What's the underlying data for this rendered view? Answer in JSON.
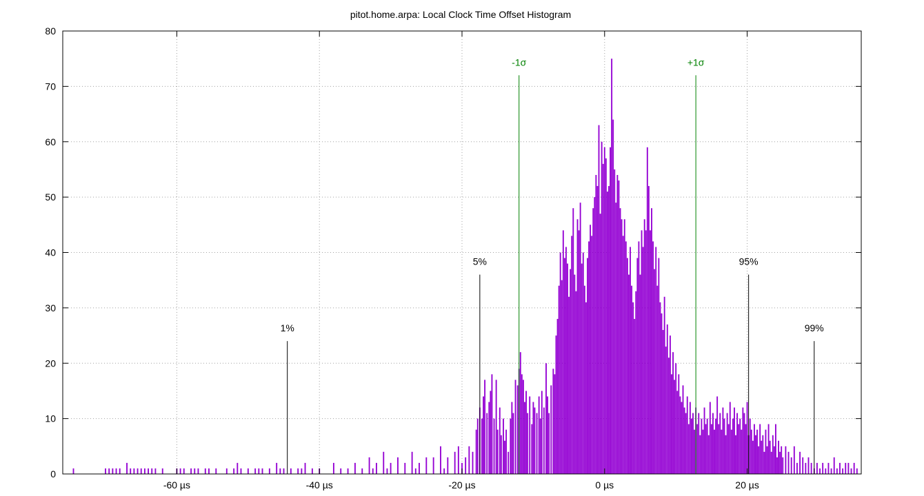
{
  "chart_data": {
    "type": "bar",
    "title": "pitot.home.arpa: Local Clock Time Offset Histogram",
    "xlabel": "",
    "ylabel": "",
    "xlim": [
      -76,
      36
    ],
    "ylim": [
      0,
      80
    ],
    "x_unit": "µs",
    "x_ticks": [
      -60,
      -40,
      -20,
      0,
      20
    ],
    "x_tick_labels": [
      "-60 µs",
      "-40 µs",
      "-20 µs",
      "0 µs",
      "20 µs"
    ],
    "y_ticks": [
      0,
      10,
      20,
      30,
      40,
      50,
      60,
      70,
      80
    ],
    "y_tick_labels": [
      "0",
      "10",
      "20",
      "30",
      "40",
      "50",
      "60",
      "70",
      "80"
    ],
    "grid": true,
    "legend": "none",
    "bin_width_us": 0.1,
    "bar_color": "#9400d3",
    "series": [
      {
        "values_note_points": [
          [
            -74.5,
            1
          ],
          [
            -70,
            1
          ],
          [
            -69.5,
            1
          ],
          [
            -69,
            1
          ],
          [
            -68.5,
            1
          ],
          [
            -68,
            1
          ],
          [
            -67,
            2
          ],
          [
            -66.5,
            1
          ],
          [
            -66,
            1
          ],
          [
            -65.5,
            1
          ],
          [
            -65,
            1
          ],
          [
            -64.5,
            1
          ],
          [
            -64,
            1
          ],
          [
            -63.5,
            1
          ],
          [
            -63,
            1
          ],
          [
            -62,
            1
          ],
          [
            -60,
            1
          ],
          [
            -59.5,
            1
          ],
          [
            -59,
            1
          ],
          [
            -58,
            1
          ],
          [
            -57.5,
            1
          ],
          [
            -57,
            1
          ],
          [
            -56,
            1
          ],
          [
            -55.5,
            1
          ],
          [
            -54.5,
            1
          ],
          [
            -53,
            1
          ],
          [
            -52,
            1
          ],
          [
            -51.5,
            2
          ],
          [
            -51,
            1
          ],
          [
            -50,
            1
          ],
          [
            -49,
            1
          ],
          [
            -48.5,
            1
          ],
          [
            -48,
            1
          ],
          [
            -47,
            1
          ],
          [
            -46,
            2
          ],
          [
            -45.5,
            1
          ],
          [
            -45,
            1
          ],
          [
            -44,
            1
          ],
          [
            -43,
            1
          ],
          [
            -42.5,
            1
          ],
          [
            -42,
            2
          ],
          [
            -41,
            1
          ],
          [
            -40,
            1
          ],
          [
            -38,
            2
          ],
          [
            -37,
            1
          ],
          [
            -36,
            1
          ],
          [
            -35,
            2
          ],
          [
            -34,
            1
          ],
          [
            -33,
            3
          ],
          [
            -32.5,
            1
          ],
          [
            -32,
            2
          ],
          [
            -31,
            4
          ],
          [
            -30.5,
            1
          ],
          [
            -30,
            2
          ],
          [
            -29,
            3
          ],
          [
            -28,
            2
          ],
          [
            -27,
            4
          ],
          [
            -26.5,
            1
          ],
          [
            -26,
            2
          ],
          [
            -25,
            3
          ],
          [
            -24,
            3
          ],
          [
            -23,
            5
          ],
          [
            -22.5,
            1
          ],
          [
            -22,
            3
          ],
          [
            -21,
            4
          ],
          [
            -20.5,
            5
          ],
          [
            -20,
            2
          ],
          [
            -19.5,
            3
          ],
          [
            -19,
            5
          ],
          [
            -18.5,
            4
          ],
          [
            -18,
            8
          ],
          [
            -17.8,
            10
          ],
          [
            -17.5,
            12
          ],
          [
            -17.2,
            10
          ],
          [
            -17,
            14
          ],
          [
            -16.8,
            17
          ],
          [
            -16.5,
            11
          ],
          [
            -16.2,
            13
          ],
          [
            -16,
            15
          ],
          [
            -15.8,
            18
          ],
          [
            -15.5,
            10
          ],
          [
            -15.2,
            17
          ],
          [
            -15,
            8
          ],
          [
            -14.7,
            12
          ],
          [
            -14.5,
            7
          ],
          [
            -14.2,
            10
          ],
          [
            -14,
            6
          ],
          [
            -13.8,
            8
          ],
          [
            -13.5,
            4
          ],
          [
            -13.2,
            10
          ],
          [
            -13,
            13
          ],
          [
            -12.8,
            11
          ],
          [
            -12.5,
            17
          ],
          [
            -12.2,
            16
          ],
          [
            -12,
            19
          ],
          [
            -11.8,
            22
          ],
          [
            -11.6,
            18
          ],
          [
            -11.4,
            17
          ],
          [
            -11.2,
            13
          ],
          [
            -11,
            15
          ],
          [
            -10.8,
            11
          ],
          [
            -10.5,
            14
          ],
          [
            -10.2,
            9
          ],
          [
            -10,
            13
          ],
          [
            -9.8,
            12
          ],
          [
            -9.5,
            11
          ],
          [
            -9.2,
            14
          ],
          [
            -9,
            10
          ],
          [
            -8.8,
            15
          ],
          [
            -8.5,
            12
          ],
          [
            -8.2,
            20
          ],
          [
            -8,
            14
          ],
          [
            -7.8,
            11
          ],
          [
            -7.5,
            16
          ],
          [
            -7.2,
            19
          ],
          [
            -7,
            18
          ],
          [
            -6.8,
            25
          ],
          [
            -6.6,
            28
          ],
          [
            -6.4,
            34
          ],
          [
            -6.2,
            40
          ],
          [
            -6,
            35
          ],
          [
            -5.8,
            44
          ],
          [
            -5.6,
            39
          ],
          [
            -5.4,
            41
          ],
          [
            -5.2,
            38
          ],
          [
            -5,
            32
          ],
          [
            -4.8,
            37
          ],
          [
            -4.6,
            43
          ],
          [
            -4.4,
            48
          ],
          [
            -4.2,
            36
          ],
          [
            -4,
            33
          ],
          [
            -3.8,
            46
          ],
          [
            -3.6,
            44
          ],
          [
            -3.4,
            49
          ],
          [
            -3.2,
            38
          ],
          [
            -3,
            40
          ],
          [
            -2.8,
            34
          ],
          [
            -2.6,
            31
          ],
          [
            -2.4,
            39
          ],
          [
            -2.2,
            42
          ],
          [
            -2,
            45
          ],
          [
            -1.8,
            43
          ],
          [
            -1.6,
            48
          ],
          [
            -1.4,
            50
          ],
          [
            -1.2,
            54
          ],
          [
            -1,
            52
          ],
          [
            -0.8,
            63
          ],
          [
            -0.6,
            47
          ],
          [
            -0.4,
            60
          ],
          [
            -0.2,
            56
          ],
          [
            0,
            59
          ],
          [
            0.2,
            57
          ],
          [
            0.4,
            51
          ],
          [
            0.6,
            52
          ],
          [
            0.8,
            59
          ],
          [
            1,
            75
          ],
          [
            1.2,
            64
          ],
          [
            1.4,
            55
          ],
          [
            1.6,
            49
          ],
          [
            1.8,
            54
          ],
          [
            2,
            53
          ],
          [
            2.2,
            48
          ],
          [
            2.4,
            46
          ],
          [
            2.6,
            43
          ],
          [
            2.8,
            46
          ],
          [
            3,
            42
          ],
          [
            3.2,
            39
          ],
          [
            3.4,
            36
          ],
          [
            3.6,
            41
          ],
          [
            3.8,
            34
          ],
          [
            4,
            31
          ],
          [
            4.2,
            28
          ],
          [
            4.4,
            33
          ],
          [
            4.6,
            39
          ],
          [
            4.8,
            42
          ],
          [
            5,
            36
          ],
          [
            5.2,
            44
          ],
          [
            5.4,
            41
          ],
          [
            5.6,
            46
          ],
          [
            5.8,
            44
          ],
          [
            6,
            59
          ],
          [
            6.2,
            52
          ],
          [
            6.4,
            44
          ],
          [
            6.6,
            48
          ],
          [
            6.8,
            42
          ],
          [
            7,
            37
          ],
          [
            7.2,
            41
          ],
          [
            7.4,
            34
          ],
          [
            7.6,
            39
          ],
          [
            7.8,
            31
          ],
          [
            8,
            29
          ],
          [
            8.2,
            26
          ],
          [
            8.4,
            32
          ],
          [
            8.6,
            23
          ],
          [
            8.8,
            27
          ],
          [
            9,
            21
          ],
          [
            9.2,
            25
          ],
          [
            9.4,
            18
          ],
          [
            9.6,
            22
          ],
          [
            9.8,
            17
          ],
          [
            10,
            20
          ],
          [
            10.2,
            15
          ],
          [
            10.4,
            18
          ],
          [
            10.6,
            14
          ],
          [
            10.8,
            13
          ],
          [
            11,
            16
          ],
          [
            11.2,
            12
          ],
          [
            11.4,
            11
          ],
          [
            11.6,
            14
          ],
          [
            11.8,
            9
          ],
          [
            12,
            13
          ],
          [
            12.2,
            10
          ],
          [
            12.4,
            11
          ],
          [
            12.6,
            8
          ],
          [
            12.8,
            12
          ],
          [
            13,
            9
          ],
          [
            13.2,
            11
          ],
          [
            13.4,
            7
          ],
          [
            13.6,
            10
          ],
          [
            13.8,
            8
          ],
          [
            14,
            12
          ],
          [
            14.2,
            9
          ],
          [
            14.4,
            10
          ],
          [
            14.6,
            7
          ],
          [
            14.8,
            13
          ],
          [
            15,
            9
          ],
          [
            15.2,
            11
          ],
          [
            15.4,
            8
          ],
          [
            15.6,
            10
          ],
          [
            15.8,
            14
          ],
          [
            16,
            9
          ],
          [
            16.2,
            11
          ],
          [
            16.4,
            8
          ],
          [
            16.6,
            12
          ],
          [
            16.8,
            10
          ],
          [
            17,
            7
          ],
          [
            17.2,
            11
          ],
          [
            17.4,
            9
          ],
          [
            17.6,
            13
          ],
          [
            17.8,
            8
          ],
          [
            18,
            10
          ],
          [
            18.2,
            12
          ],
          [
            18.4,
            7
          ],
          [
            18.6,
            11
          ],
          [
            18.8,
            9
          ],
          [
            19,
            10
          ],
          [
            19.2,
            8
          ],
          [
            19.4,
            12
          ],
          [
            19.6,
            11
          ],
          [
            19.8,
            9
          ],
          [
            20,
            13
          ],
          [
            20.2,
            7
          ],
          [
            20.4,
            10
          ],
          [
            20.6,
            8
          ],
          [
            20.8,
            6
          ],
          [
            21,
            9
          ],
          [
            21.2,
            7
          ],
          [
            21.4,
            8
          ],
          [
            21.6,
            5
          ],
          [
            21.8,
            9
          ],
          [
            22,
            6
          ],
          [
            22.2,
            7
          ],
          [
            22.4,
            4
          ],
          [
            22.6,
            8
          ],
          [
            22.8,
            5
          ],
          [
            23,
            9
          ],
          [
            23.2,
            6
          ],
          [
            23.4,
            4
          ],
          [
            23.6,
            7
          ],
          [
            23.8,
            5
          ],
          [
            24,
            9
          ],
          [
            24.2,
            3
          ],
          [
            24.4,
            6
          ],
          [
            24.6,
            4
          ],
          [
            24.8,
            5
          ],
          [
            25,
            3
          ],
          [
            25.4,
            5
          ],
          [
            25.8,
            4
          ],
          [
            26.2,
            3
          ],
          [
            26.6,
            5
          ],
          [
            27,
            2
          ],
          [
            27.4,
            4
          ],
          [
            27.8,
            3
          ],
          [
            28.2,
            2
          ],
          [
            28.6,
            3
          ],
          [
            29,
            2
          ],
          [
            29.4,
            1
          ],
          [
            29.8,
            2
          ],
          [
            30.2,
            1
          ],
          [
            30.6,
            2
          ],
          [
            31,
            1
          ],
          [
            31.4,
            2
          ],
          [
            31.8,
            1
          ],
          [
            32.2,
            3
          ],
          [
            32.6,
            1
          ],
          [
            33,
            2
          ],
          [
            33.4,
            1
          ],
          [
            33.8,
            2
          ],
          [
            34.2,
            2
          ],
          [
            34.6,
            1
          ],
          [
            35,
            2
          ],
          [
            35.4,
            1
          ]
        ]
      }
    ],
    "markers": [
      {
        "label": "1%",
        "x": -44.5,
        "height": 24,
        "color": "#000000"
      },
      {
        "label": "5%",
        "x": -17.5,
        "height": 36,
        "color": "#000000"
      },
      {
        "label": "-1σ",
        "x": -12,
        "height": 72,
        "color": "#008000"
      },
      {
        "label": "+1σ",
        "x": 12.8,
        "height": 72,
        "color": "#008000"
      },
      {
        "label": "95%",
        "x": 20.2,
        "height": 36,
        "color": "#000000"
      },
      {
        "label": "99%",
        "x": 29.4,
        "height": 24,
        "color": "#000000"
      }
    ]
  }
}
